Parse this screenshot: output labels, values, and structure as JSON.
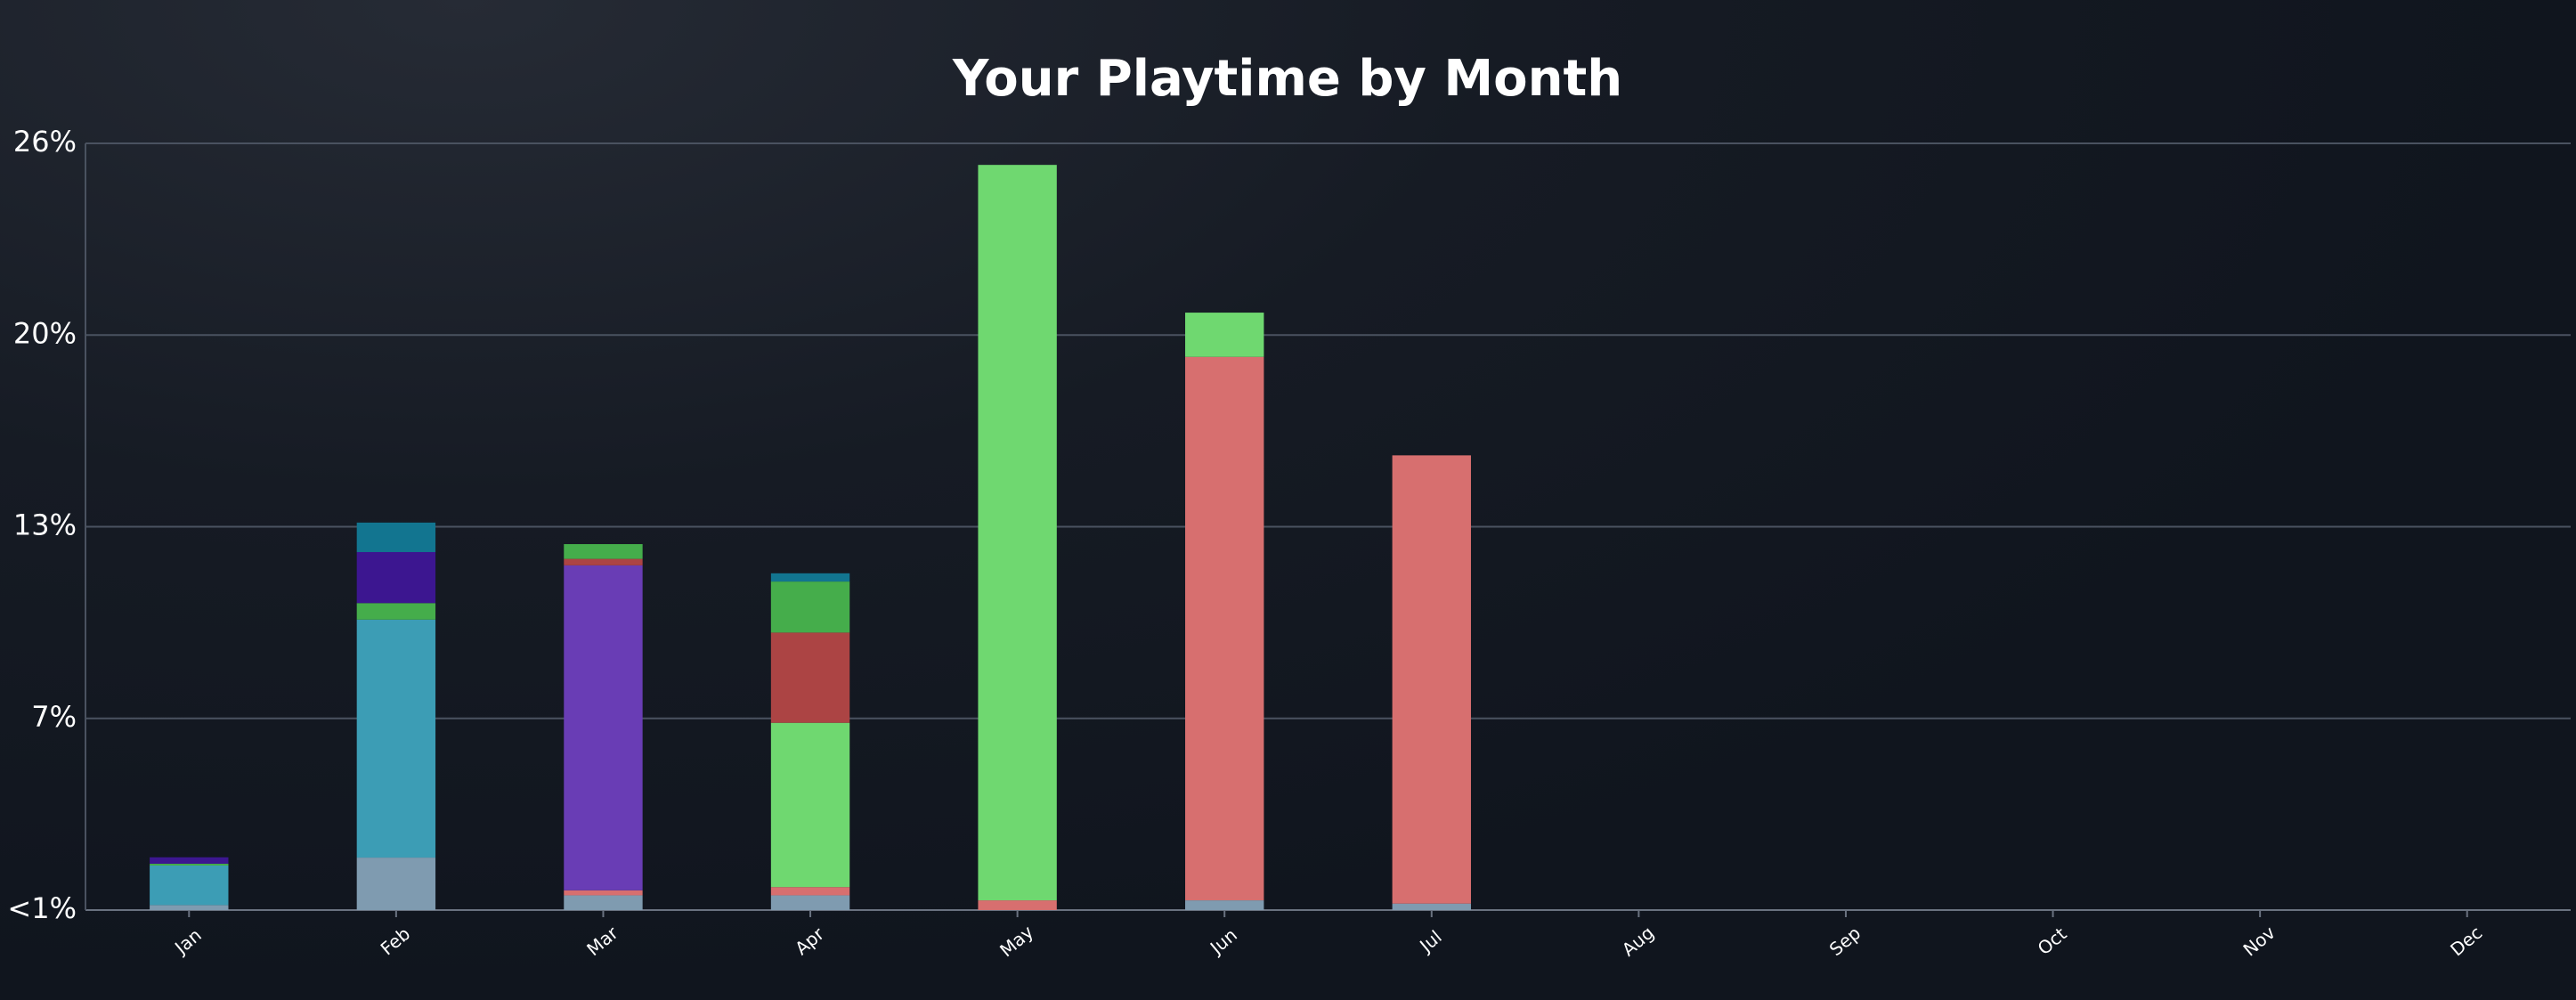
{
  "chart_data": {
    "type": "stacked_bar",
    "title": "Your Playtime by Month",
    "categories": [
      "Jan",
      "Feb",
      "Mar",
      "Apr",
      "May",
      "Jun",
      "Jul",
      "Aug",
      "Sep",
      "Oct",
      "Nov",
      "Dec"
    ],
    "series": [
      {
        "color": "#7f9bb0",
        "values": [
          0.17,
          1.78,
          0.5,
          0.5,
          null,
          0.33,
          0.22,
          null,
          null,
          null,
          null,
          null
        ]
      },
      {
        "color": "#d76f6f",
        "values": [
          null,
          null,
          0.17,
          0.28,
          0.33,
          18.43,
          15.2,
          null,
          null,
          null,
          null,
          null
        ]
      },
      {
        "color": "#3c9db5",
        "values": [
          1.34,
          8.07,
          null,
          null,
          null,
          null,
          null,
          null,
          null,
          null,
          null,
          null
        ]
      },
      {
        "color": "#6fd870",
        "values": [
          null,
          null,
          null,
          5.57,
          24.94,
          1.5,
          null,
          null,
          null,
          null,
          null,
          null
        ]
      },
      {
        "color": "#693db5",
        "values": [
          null,
          null,
          11.02,
          null,
          null,
          null,
          null,
          null,
          null,
          null,
          null,
          null
        ]
      },
      {
        "color": "#ac4444",
        "values": [
          null,
          null,
          0.22,
          3.06,
          null,
          null,
          null,
          null,
          null,
          null,
          null,
          null
        ]
      },
      {
        "color": "#45ad4b",
        "values": [
          0.06,
          0.56,
          0.5,
          1.73,
          null,
          null,
          null,
          null,
          null,
          null,
          null,
          null
        ]
      },
      {
        "color": "#3c1690",
        "values": [
          0.22,
          1.73,
          null,
          null,
          null,
          null,
          null,
          null,
          null,
          null,
          null,
          null
        ]
      },
      {
        "color": "#127590",
        "values": [
          null,
          1.0,
          null,
          0.28,
          null,
          null,
          null,
          null,
          null,
          null,
          null,
          null
        ]
      }
    ],
    "ylim": [
      0,
      26
    ],
    "yticks": [
      {
        "value": 0,
        "label": "<1%"
      },
      {
        "value": 6.5,
        "label": "7%"
      },
      {
        "value": 13,
        "label": "13%"
      },
      {
        "value": 19.5,
        "label": "20%"
      },
      {
        "value": 26,
        "label": "26%"
      }
    ],
    "grid": true
  }
}
